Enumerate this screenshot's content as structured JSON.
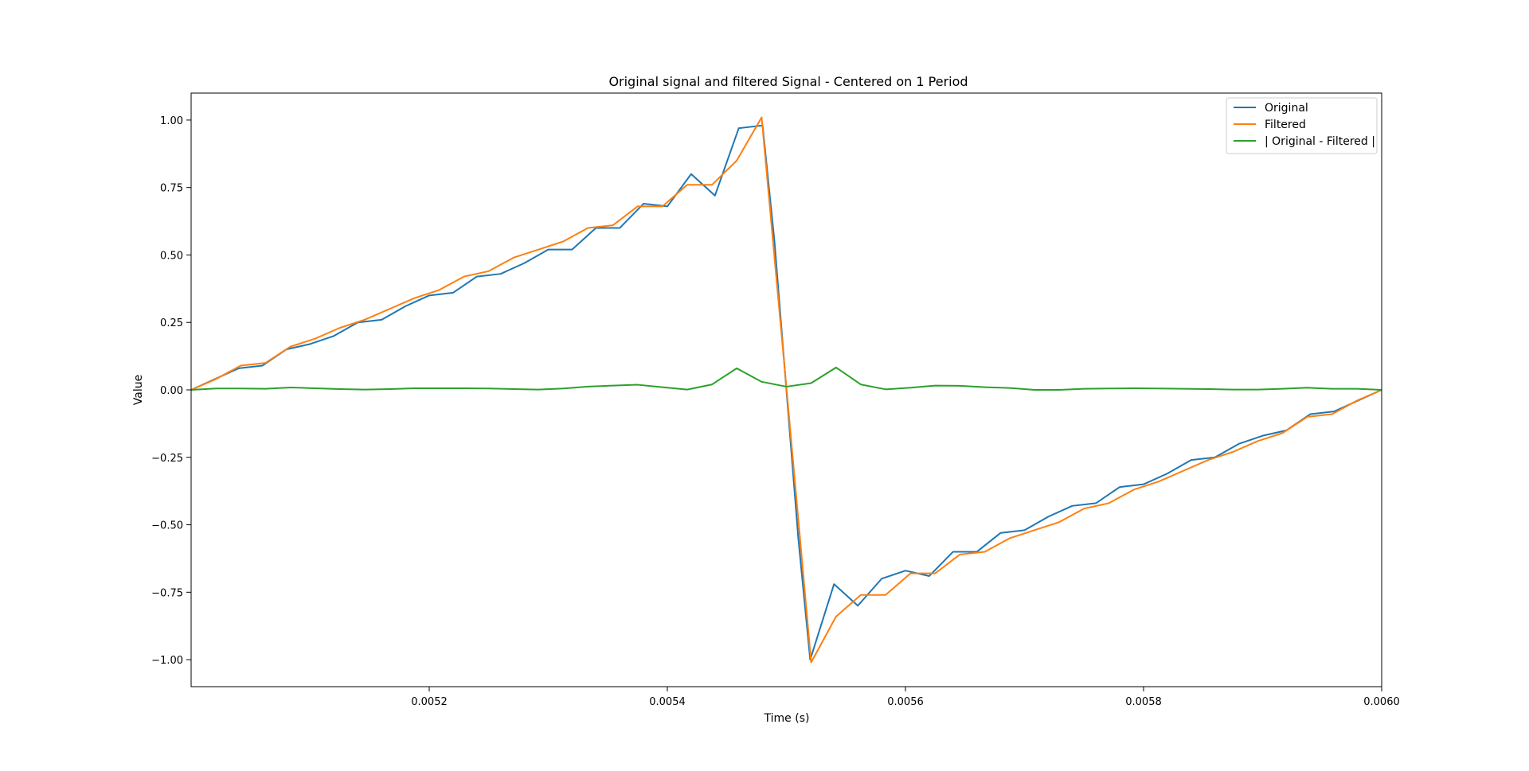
{
  "chart_data": {
    "type": "line",
    "title": "Original signal and filtered Signal - Centered on 1 Period",
    "xlabel": "Time (s)",
    "ylabel": "Value",
    "xlim": [
      0.005,
      0.006
    ],
    "ylim": [
      -1.1,
      1.1
    ],
    "xticks": [
      0.0052,
      0.0054,
      0.0056,
      0.0058,
      0.006
    ],
    "xtick_labels": [
      "0.0052",
      "0.0054",
      "0.0056",
      "0.0058",
      "0.0060"
    ],
    "yticks": [
      1.0,
      0.75,
      0.5,
      0.25,
      0.0,
      -0.25,
      -0.5,
      -0.75,
      -1.0
    ],
    "ytick_labels": [
      "1.00",
      "0.75",
      "0.50",
      "0.25",
      "0.00",
      "−0.25",
      "−0.50",
      "−0.75",
      "−1.00"
    ],
    "grid": false,
    "legend_position": "top-right",
    "series": [
      {
        "name": "Original",
        "color": "#1f77b4",
        "x": [
          0.005,
          0.00502,
          0.00504,
          0.00506,
          0.00508,
          0.0051,
          0.00512,
          0.00514,
          0.00516,
          0.00518,
          0.0052,
          0.00522,
          0.00524,
          0.00526,
          0.00528,
          0.0053,
          0.00532,
          0.00534,
          0.00536,
          0.00538,
          0.0054,
          0.00542,
          0.00544,
          0.00546,
          0.00548,
          0.00549,
          0.0055,
          0.00551,
          0.00552,
          0.00554,
          0.00556,
          0.00558,
          0.0056,
          0.00562,
          0.00564,
          0.00566,
          0.00568,
          0.0057,
          0.00572,
          0.00574,
          0.00576,
          0.00578,
          0.0058,
          0.00582,
          0.00584,
          0.00586,
          0.00588,
          0.0059,
          0.00592,
          0.00594,
          0.00596,
          0.00598,
          0.006
        ],
        "values": [
          0.0,
          0.04,
          0.08,
          0.09,
          0.15,
          0.17,
          0.2,
          0.25,
          0.26,
          0.31,
          0.35,
          0.36,
          0.42,
          0.43,
          0.47,
          0.52,
          0.52,
          0.6,
          0.6,
          0.69,
          0.68,
          0.8,
          0.72,
          0.97,
          0.98,
          0.55,
          0.0,
          -0.55,
          -1.0,
          -0.72,
          -0.8,
          -0.7,
          -0.67,
          -0.69,
          -0.6,
          -0.6,
          -0.53,
          -0.52,
          -0.47,
          -0.43,
          -0.42,
          -0.36,
          -0.35,
          -0.31,
          -0.26,
          -0.25,
          -0.2,
          -0.17,
          -0.15,
          -0.09,
          -0.08,
          -0.04,
          0.0
        ]
      },
      {
        "name": "Filtered",
        "color": "#ff7f0e",
        "x": [
          0.005,
          0.0050208,
          0.0050417,
          0.0050625,
          0.0050833,
          0.0051042,
          0.005125,
          0.0051458,
          0.0051667,
          0.0051875,
          0.0052083,
          0.0052292,
          0.00525,
          0.0052708,
          0.0052917,
          0.0053125,
          0.0053333,
          0.0053542,
          0.005375,
          0.0053958,
          0.0054167,
          0.0054375,
          0.0054583,
          0.0054792,
          0.0055,
          0.0055208,
          0.0055417,
          0.0055625,
          0.0055833,
          0.0056042,
          0.005625,
          0.0056458,
          0.0056667,
          0.0056875,
          0.0057083,
          0.0057292,
          0.00575,
          0.0057708,
          0.0057917,
          0.0058125,
          0.0058333,
          0.0058542,
          0.005875,
          0.0058958,
          0.0059167,
          0.0059375,
          0.0059583,
          0.0059792,
          0.006
        ],
        "values": [
          0.0,
          0.04,
          0.09,
          0.1,
          0.16,
          0.19,
          0.23,
          0.26,
          0.3,
          0.34,
          0.37,
          0.42,
          0.44,
          0.49,
          0.52,
          0.55,
          0.6,
          0.61,
          0.68,
          0.68,
          0.76,
          0.76,
          0.85,
          1.01,
          0.01,
          -1.01,
          -0.84,
          -0.76,
          -0.76,
          -0.68,
          -0.68,
          -0.61,
          -0.6,
          -0.55,
          -0.52,
          -0.49,
          -0.44,
          -0.42,
          -0.37,
          -0.34,
          -0.3,
          -0.26,
          -0.23,
          -0.19,
          -0.16,
          -0.1,
          -0.09,
          -0.04,
          0.0
        ]
      },
      {
        "name": "| Original - Filtered |",
        "color": "#2ca02c",
        "x": [
          0.005,
          0.0050208,
          0.0050417,
          0.0050625,
          0.0050833,
          0.0051042,
          0.005125,
          0.0051458,
          0.0051667,
          0.0051875,
          0.0052083,
          0.0052292,
          0.00525,
          0.0052708,
          0.0052917,
          0.0053125,
          0.0053333,
          0.0053542,
          0.005375,
          0.0053958,
          0.0054167,
          0.0054375,
          0.0054583,
          0.0054792,
          0.0055,
          0.0055208,
          0.0055417,
          0.0055625,
          0.0055833,
          0.0056042,
          0.005625,
          0.0056458,
          0.0056667,
          0.0056875,
          0.0057083,
          0.0057292,
          0.00575,
          0.0057708,
          0.0057917,
          0.0058125,
          0.0058333,
          0.0058542,
          0.005875,
          0.0058958,
          0.0059167,
          0.0059375,
          0.0059583,
          0.0059792,
          0.006
        ],
        "values": [
          0.0,
          0.005,
          0.005,
          0.004,
          0.009,
          0.006,
          0.003,
          0.001,
          0.003,
          0.006,
          0.006,
          0.006,
          0.005,
          0.003,
          0.001,
          0.005,
          0.012,
          0.016,
          0.019,
          0.01,
          0.001,
          0.02,
          0.08,
          0.03,
          0.012,
          0.025,
          0.083,
          0.02,
          0.002,
          0.008,
          0.016,
          0.015,
          0.01,
          0.007,
          0.0,
          0.0,
          0.004,
          0.005,
          0.006,
          0.005,
          0.004,
          0.003,
          0.001,
          0.001,
          0.004,
          0.008,
          0.004,
          0.004,
          0.0
        ]
      }
    ]
  }
}
